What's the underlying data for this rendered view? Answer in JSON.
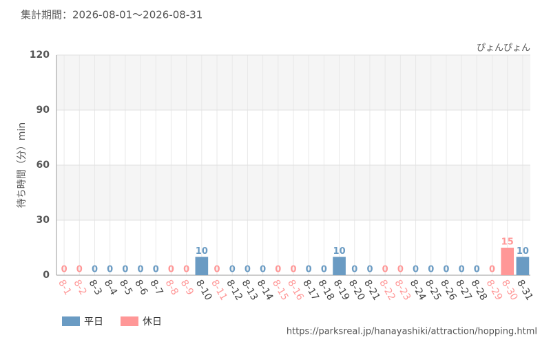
{
  "chart_data": {
    "type": "bar",
    "title": "集計期間：2026-08-01～2026-08-31",
    "subtitle": "ぴょんぴょん",
    "y_label": "待ち時間（分）min",
    "source": "https://parksreal.jp/hanayashiki/attraction/hopping.html",
    "categories": [
      "8-1",
      "8-2",
      "8-3",
      "8-4",
      "8-5",
      "8-6",
      "8-7",
      "8-8",
      "8-9",
      "8-10",
      "8-11",
      "8-12",
      "8-13",
      "8-14",
      "8-15",
      "8-16",
      "8-17",
      "8-18",
      "8-19",
      "8-20",
      "8-21",
      "8-22",
      "8-23",
      "8-24",
      "8-25",
      "8-26",
      "8-27",
      "8-28",
      "8-29",
      "8-30",
      "8-31"
    ],
    "series": [
      {
        "name": "平日",
        "color": "#6a9bc3",
        "values": [
          null,
          null,
          0,
          0,
          0,
          0,
          0,
          null,
          null,
          10,
          null,
          0,
          0,
          0,
          null,
          null,
          0,
          0,
          10,
          0,
          0,
          null,
          null,
          0,
          0,
          0,
          0,
          0,
          null,
          null,
          10
        ]
      },
      {
        "name": "休日",
        "color": "#ff9797",
        "values": [
          0,
          0,
          null,
          null,
          null,
          null,
          null,
          0,
          0,
          null,
          0,
          null,
          null,
          null,
          0,
          0,
          null,
          null,
          null,
          null,
          null,
          0,
          0,
          null,
          null,
          null,
          null,
          null,
          0,
          15,
          null
        ]
      }
    ],
    "ylim": [
      0,
      120
    ],
    "yticks": [
      0,
      30,
      60,
      90,
      120
    ],
    "grid": true
  }
}
